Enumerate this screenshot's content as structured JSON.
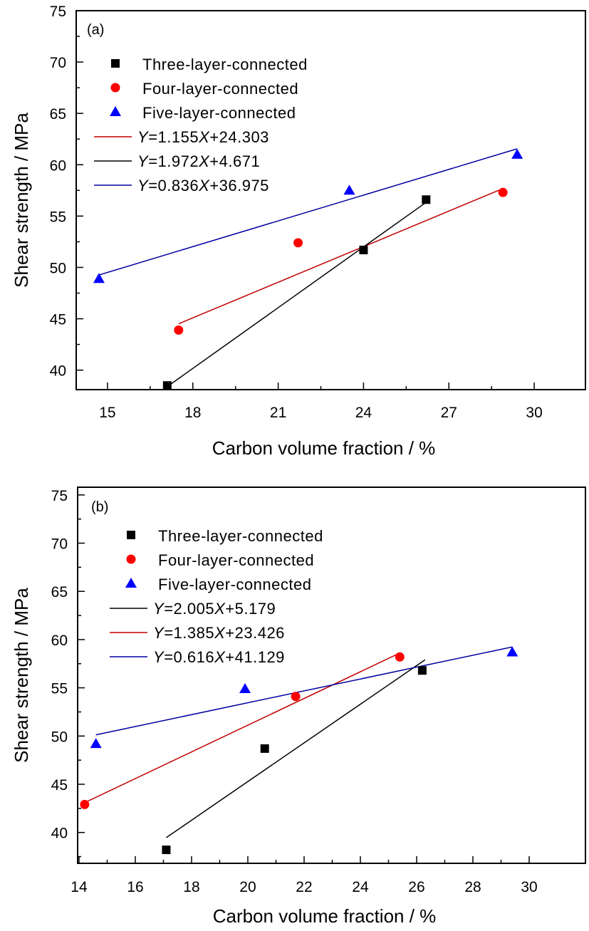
{
  "chart_data": [
    {
      "type": "scatter",
      "panel_label": "(a)",
      "xlabel": "Carbon volume fraction / %",
      "ylabel": "Shear strength / MPa",
      "xlim": [
        13.9,
        31.8
      ],
      "ylim": [
        38.1,
        75
      ],
      "xticks": [
        15,
        18,
        21,
        24,
        27,
        30
      ],
      "xminor": [
        16.5,
        19.5,
        22.5,
        25.5,
        28.5
      ],
      "yticks": [
        40,
        45,
        50,
        55,
        60,
        65,
        70,
        75
      ],
      "yminor": [
        42.5,
        47.5,
        52.5,
        57.5,
        62.5,
        67.5,
        72.5
      ],
      "grid": false,
      "legend_position": "top-left",
      "series": [
        {
          "name": "Three-layer-connected",
          "marker": "square",
          "color": "#000000",
          "points": [
            [
              17.1,
              38.5
            ],
            [
              24.0,
              51.7
            ],
            [
              26.2,
              56.6
            ]
          ]
        },
        {
          "name": "Four-layer-connected",
          "marker": "circle",
          "color": "#ff0000",
          "points": [
            [
              17.5,
              43.9
            ],
            [
              21.7,
              52.4
            ],
            [
              28.9,
              57.3
            ]
          ]
        },
        {
          "name": "Five-layer-connected",
          "marker": "triangle",
          "color": "#0000ff",
          "points": [
            [
              14.7,
              48.9
            ],
            [
              23.5,
              57.5
            ],
            [
              29.4,
              61.0
            ]
          ]
        }
      ],
      "fits": [
        {
          "label_y": "Y",
          "label_eq": "=1.155",
          "label_x": "X",
          "label_rest": "+24.303",
          "slope": 1.155,
          "intercept": 24.303,
          "color": "#c00000",
          "x_range": [
            17.5,
            28.9
          ]
        },
        {
          "label_y": "Y",
          "label_eq": "=1.972",
          "label_x": "X",
          "label_rest": "+4.671",
          "slope": 1.972,
          "intercept": 4.671,
          "color": "#000000",
          "x_range": [
            17.1,
            26.2
          ]
        },
        {
          "label_y": "Y",
          "label_eq": "=0.836",
          "label_x": "X",
          "label_rest": "+36.975",
          "slope": 0.836,
          "intercept": 36.975,
          "color": "#0000a0",
          "x_range": [
            14.7,
            29.4
          ]
        }
      ]
    },
    {
      "type": "scatter",
      "panel_label": "(b)",
      "xlabel": "Carbon volume fraction / %",
      "ylabel": "Shear strength / MPa",
      "xlim": [
        13.95,
        32.0
      ],
      "ylim": [
        36.8,
        75.8
      ],
      "xticks": [
        14,
        16,
        18,
        20,
        22,
        24,
        26,
        28,
        30
      ],
      "xminor": [
        15,
        17,
        19,
        21,
        23,
        25,
        27,
        29
      ],
      "yticks": [
        40,
        45,
        50,
        55,
        60,
        65,
        70,
        75
      ],
      "yminor": [
        37.5,
        42.5,
        47.5,
        52.5,
        57.5,
        62.5,
        67.5,
        72.5
      ],
      "grid": false,
      "legend_position": "top-left",
      "series": [
        {
          "name": "Three-layer-connected",
          "marker": "square",
          "color": "#000000",
          "points": [
            [
              17.1,
              38.2
            ],
            [
              20.6,
              48.7
            ],
            [
              26.2,
              56.8
            ]
          ]
        },
        {
          "name": "Four-layer-connected",
          "marker": "circle",
          "color": "#ff0000",
          "points": [
            [
              14.2,
              42.9
            ],
            [
              21.7,
              54.1
            ],
            [
              25.4,
              58.2
            ]
          ]
        },
        {
          "name": "Five-layer-connected",
          "marker": "triangle",
          "color": "#0000ff",
          "points": [
            [
              14.6,
              49.2
            ],
            [
              19.9,
              54.9
            ],
            [
              29.4,
              58.7
            ]
          ]
        }
      ],
      "fits": [
        {
          "label_y": "Y",
          "label_eq": "=2.005",
          "label_x": "X",
          "label_rest": "+5.179",
          "slope": 2.005,
          "intercept": 5.179,
          "color": "#000000",
          "x_range": [
            17.1,
            26.3
          ]
        },
        {
          "label_y": "Y",
          "label_eq": "=1.385",
          "label_x": "X",
          "label_rest": "+23.426",
          "slope": 1.385,
          "intercept": 23.426,
          "color": "#c00000",
          "x_range": [
            14.2,
            25.4
          ]
        },
        {
          "label_y": "Y",
          "label_eq": "=0.616",
          "label_x": "X",
          "label_rest": "+41.129",
          "slope": 0.616,
          "intercept": 41.129,
          "color": "#0000a0",
          "x_range": [
            14.6,
            29.4
          ]
        }
      ]
    }
  ]
}
